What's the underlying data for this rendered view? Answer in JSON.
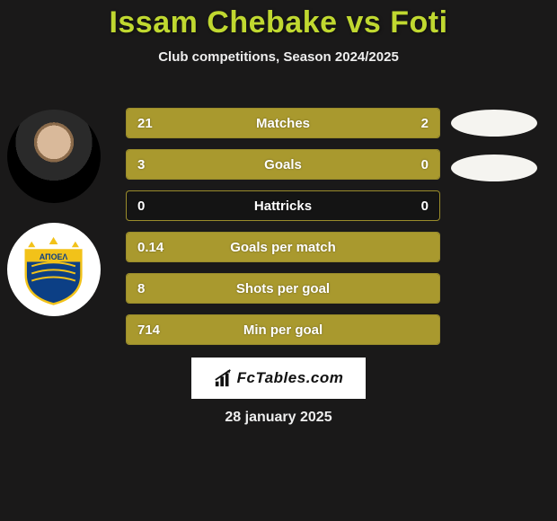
{
  "title": "Issam Chebake vs Foti",
  "subtitle": "Club competitions, Season 2024/2025",
  "colors": {
    "background": "#1a1919",
    "title": "#c0d830",
    "bar_fill": "#a9992e",
    "bar_border": "#a9992e",
    "text": "#ffffff",
    "footer_bg": "#ffffff",
    "footer_text": "#111111",
    "oval": "#f5f4f0"
  },
  "rows": [
    {
      "label": "Matches",
      "left": "21",
      "right": "2",
      "fill_left_pct": 75,
      "fill_right_pct": 25
    },
    {
      "label": "Goals",
      "left": "3",
      "right": "0",
      "fill_left_pct": 100,
      "fill_right_pct": 0
    },
    {
      "label": "Hattricks",
      "left": "0",
      "right": "0",
      "fill_left_pct": 0,
      "fill_right_pct": 0
    },
    {
      "label": "Goals per match",
      "left": "0.14",
      "right": "",
      "fill_left_pct": 100,
      "fill_right_pct": 0
    },
    {
      "label": "Shots per goal",
      "left": "8",
      "right": "",
      "fill_left_pct": 100,
      "fill_right_pct": 0
    },
    {
      "label": "Min per goal",
      "left": "714",
      "right": "",
      "fill_left_pct": 100,
      "fill_right_pct": 0
    }
  ],
  "ovals_count": 2,
  "footer_label": "FcTables.com",
  "date": "28 january 2025"
}
